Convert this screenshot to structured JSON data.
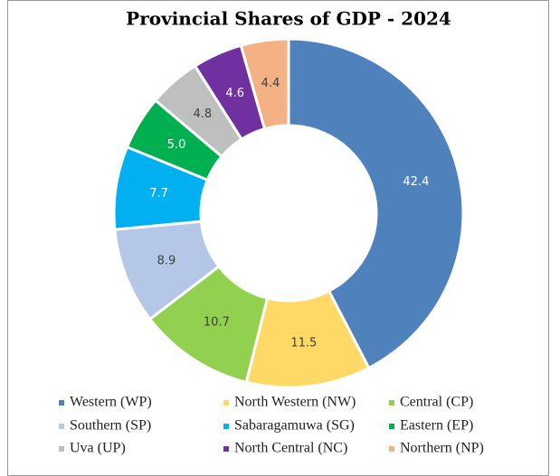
{
  "chart_data": {
    "type": "donut",
    "title": "Provincial Shares of GDP - 2024",
    "categories": [
      "Western (WP)",
      "North Western (NW)",
      "Central (CP)",
      "Southern (SP)",
      "Sabaragamuwa (SG)",
      "Eastern (EP)",
      "Uva (UP)",
      "North Central (NC)",
      "Northern (NP)"
    ],
    "values": [
      42.4,
      11.5,
      10.7,
      8.9,
      7.7,
      5.0,
      4.8,
      4.6,
      4.4
    ],
    "value_labels": [
      "42.4",
      "11.5",
      "10.7",
      "8.9",
      "7.7",
      "5.0",
      "4.8",
      "4.6",
      "4.4"
    ],
    "colors": [
      "#4f81bd",
      "#ffd966",
      "#92d050",
      "#b4c7e7",
      "#00b0f0",
      "#00b050",
      "#bfbfbf",
      "#7030a0",
      "#f4b183"
    ],
    "legend": "bottom"
  }
}
